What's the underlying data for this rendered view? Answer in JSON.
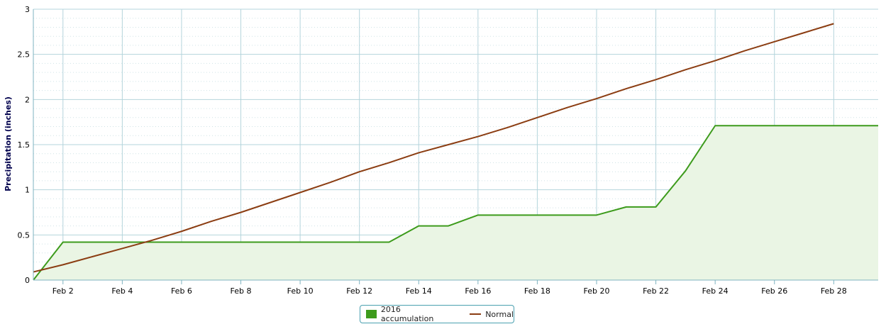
{
  "chart_data": {
    "type": "area",
    "title": "",
    "xlabel": "",
    "ylabel": "Precipitation (inches)",
    "ylim": [
      0,
      3
    ],
    "yticks": [
      "0",
      "0.5",
      "1",
      "1.5",
      "2",
      "2.5",
      "3"
    ],
    "xlim": [
      1,
      29.5
    ],
    "xticks": [
      {
        "day": 2,
        "label": "Feb 2"
      },
      {
        "day": 4,
        "label": "Feb 4"
      },
      {
        "day": 6,
        "label": "Feb 6"
      },
      {
        "day": 8,
        "label": "Feb 8"
      },
      {
        "day": 10,
        "label": "Feb 10"
      },
      {
        "day": 12,
        "label": "Feb 12"
      },
      {
        "day": 14,
        "label": "Feb 14"
      },
      {
        "day": 16,
        "label": "Feb 16"
      },
      {
        "day": 18,
        "label": "Feb 18"
      },
      {
        "day": 20,
        "label": "Feb 20"
      },
      {
        "day": 22,
        "label": "Feb 22"
      },
      {
        "day": 24,
        "label": "Feb 24"
      },
      {
        "day": 26,
        "label": "Feb 26"
      },
      {
        "day": 28,
        "label": "Feb 28"
      }
    ],
    "grid": true,
    "legend_position": "bottom-center",
    "series": [
      {
        "name": "2016 accumulation",
        "kind": "area",
        "color": "#3d9b1c",
        "fill": "#eaf5e4",
        "x": [
          1,
          2,
          13,
          14,
          15,
          16,
          20,
          21,
          22,
          23,
          24,
          29.5
        ],
        "y": [
          0,
          0.42,
          0.42,
          0.6,
          0.6,
          0.72,
          0.72,
          0.81,
          0.81,
          1.21,
          1.71,
          1.71
        ]
      },
      {
        "name": "Normal",
        "kind": "line",
        "color": "#8b3d12",
        "x": [
          1,
          2,
          3,
          4,
          5,
          6,
          7,
          8,
          9,
          10,
          11,
          12,
          13,
          14,
          15,
          16,
          17,
          18,
          19,
          20,
          21,
          22,
          23,
          24,
          25,
          26,
          27,
          28
        ],
        "y": [
          0.09,
          0.17,
          0.26,
          0.35,
          0.44,
          0.54,
          0.65,
          0.75,
          0.86,
          0.97,
          1.08,
          1.2,
          1.3,
          1.41,
          1.5,
          1.59,
          1.69,
          1.8,
          1.91,
          2.01,
          2.12,
          2.22,
          2.33,
          2.43,
          2.54,
          2.64,
          2.74,
          2.84
        ]
      }
    ]
  }
}
